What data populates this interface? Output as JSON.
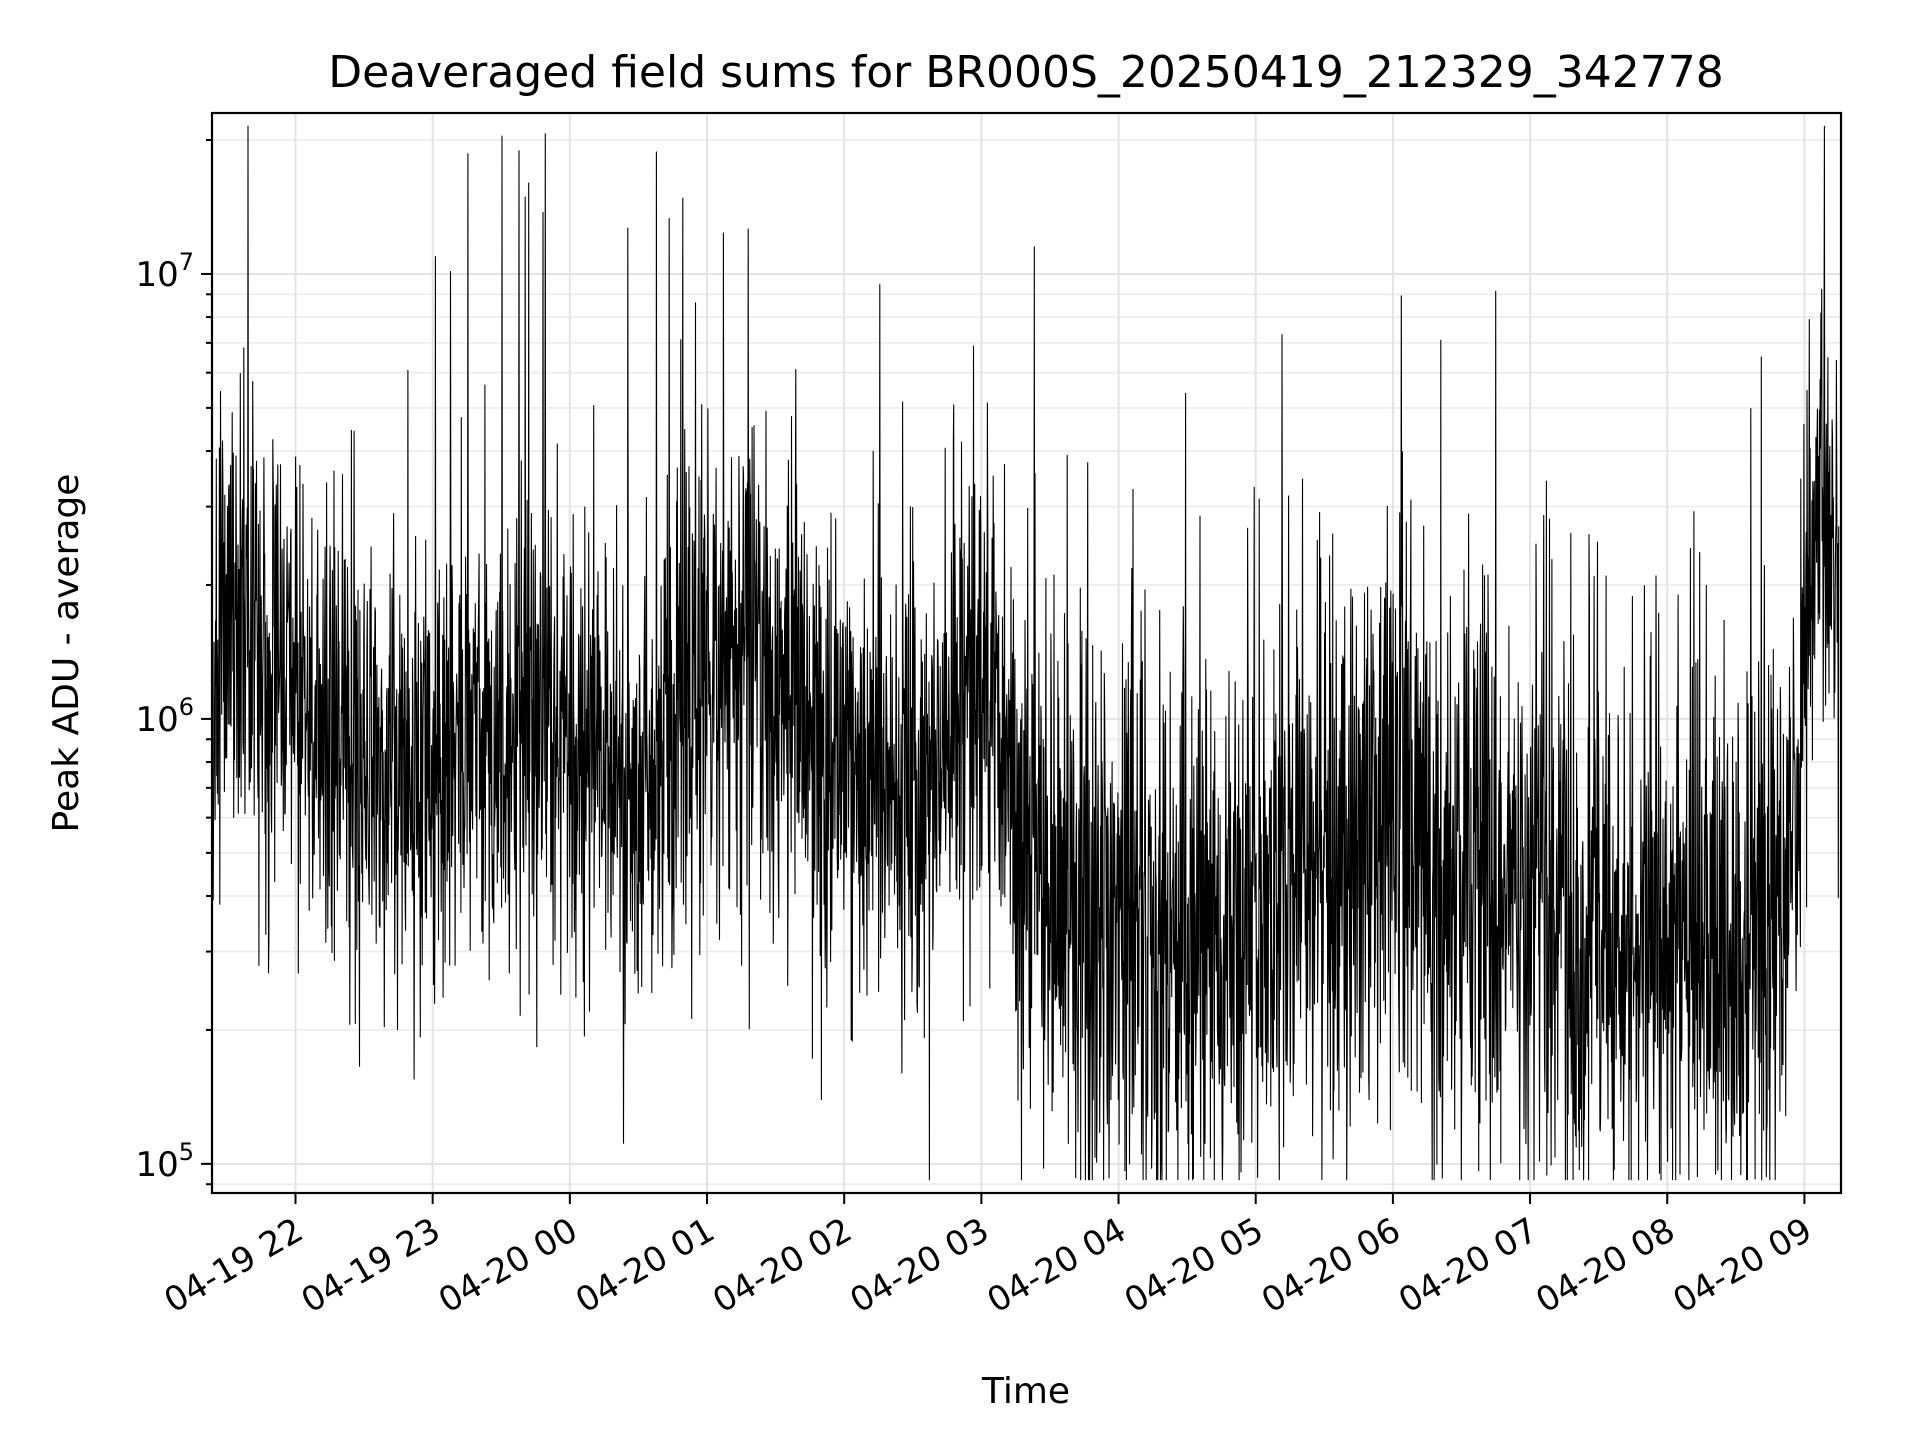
{
  "chart_data": {
    "type": "line",
    "title": "Deaveraged field sums for BR000S_20250419_212329_342778",
    "xlabel": "Time",
    "ylabel": "Peak ADU - average",
    "yscale": "log",
    "ylim": [
      86000,
      23000000
    ],
    "xlim": [
      "2025-04-19T21:23:29",
      "2025-04-20T09:16:00"
    ],
    "grid": true,
    "line_color": "#000000",
    "x_ticks": [
      {
        "label": "04-19 22",
        "time": "2025-04-19T22:00:00"
      },
      {
        "label": "04-19 23",
        "time": "2025-04-19T23:00:00"
      },
      {
        "label": "04-20 00",
        "time": "2025-04-20T00:00:00"
      },
      {
        "label": "04-20 01",
        "time": "2025-04-20T01:00:00"
      },
      {
        "label": "04-20 02",
        "time": "2025-04-20T02:00:00"
      },
      {
        "label": "04-20 03",
        "time": "2025-04-20T03:00:00"
      },
      {
        "label": "04-20 04",
        "time": "2025-04-20T04:00:00"
      },
      {
        "label": "04-20 05",
        "time": "2025-04-20T05:00:00"
      },
      {
        "label": "04-20 06",
        "time": "2025-04-20T06:00:00"
      },
      {
        "label": "04-20 07",
        "time": "2025-04-20T07:00:00"
      },
      {
        "label": "04-20 08",
        "time": "2025-04-20T08:00:00"
      },
      {
        "label": "04-20 09",
        "time": "2025-04-20T09:00:00"
      }
    ],
    "y_ticks": [
      {
        "base": "10",
        "exp": "5",
        "value": 100000
      },
      {
        "base": "10",
        "exp": "6",
        "value": 1000000
      },
      {
        "base": "10",
        "exp": "7",
        "value": 10000000
      }
    ],
    "series": [
      {
        "x": [
          "2025-04-19T21:24:00",
          "2025-04-19T21:30:00",
          "2025-04-19T21:40:00",
          "2025-04-19T21:50:00",
          "2025-04-19T22:00:00",
          "2025-04-19T22:15:00",
          "2025-04-19T22:30:00",
          "2025-04-19T22:45:00",
          "2025-04-19T23:00:00",
          "2025-04-19T23:15:00",
          "2025-04-19T23:30:00",
          "2025-04-19T23:45:00",
          "2025-04-20T00:00:00",
          "2025-04-20T00:15:00",
          "2025-04-20T00:30:00",
          "2025-04-20T00:45:00",
          "2025-04-20T01:00:00",
          "2025-04-20T01:15:00",
          "2025-04-20T01:30:00",
          "2025-04-20T01:45:00",
          "2025-04-20T02:00:00",
          "2025-04-20T02:15:00",
          "2025-04-20T02:30:00",
          "2025-04-20T02:45:00",
          "2025-04-20T03:00:00",
          "2025-04-20T03:15:00",
          "2025-04-20T03:30:00",
          "2025-04-20T03:45:00",
          "2025-04-20T04:00:00",
          "2025-04-20T04:15:00",
          "2025-04-20T04:30:00",
          "2025-04-20T04:45:00",
          "2025-04-20T05:00:00",
          "2025-04-20T05:15:00",
          "2025-04-20T05:30:00",
          "2025-04-20T05:45:00",
          "2025-04-20T06:00:00",
          "2025-04-20T06:15:00",
          "2025-04-20T06:30:00",
          "2025-04-20T06:45:00",
          "2025-04-20T07:00:00",
          "2025-04-20T07:15:00",
          "2025-04-20T07:30:00",
          "2025-04-20T07:45:00",
          "2025-04-20T08:00:00",
          "2025-04-20T08:15:00",
          "2025-04-20T08:30:00",
          "2025-04-20T08:45:00",
          "2025-04-20T08:55:00",
          "2025-04-20T09:00:00",
          "2025-04-20T09:05:00",
          "2025-04-20T09:10:00",
          "2025-04-20T09:15:00"
        ],
        "y": [
          1000000,
          1800000,
          1500000,
          1400000,
          1100000,
          900000,
          850000,
          800000,
          750000,
          780000,
          850000,
          1100000,
          800000,
          700000,
          650000,
          900000,
          1500000,
          1300000,
          1100000,
          1000000,
          850000,
          800000,
          750000,
          900000,
          1300000,
          600000,
          450000,
          400000,
          380000,
          360000,
          350000,
          340000,
          330000,
          400000,
          500000,
          550000,
          600000,
          500000,
          450000,
          400000,
          380000,
          360000,
          340000,
          330000,
          320000,
          310000,
          300000,
          330000,
          500000,
          1200000,
          2800000,
          3500000,
          1500000
        ],
        "spread_decades": [
          0.28,
          0.28,
          0.28,
          0.28,
          0.26,
          0.26,
          0.26,
          0.26,
          0.26,
          0.26,
          0.26,
          0.26,
          0.26,
          0.28,
          0.28,
          0.28,
          0.28,
          0.28,
          0.28,
          0.28,
          0.28,
          0.28,
          0.28,
          0.28,
          0.28,
          0.32,
          0.32,
          0.32,
          0.32,
          0.32,
          0.32,
          0.32,
          0.32,
          0.34,
          0.34,
          0.34,
          0.34,
          0.34,
          0.34,
          0.34,
          0.32,
          0.32,
          0.32,
          0.32,
          0.32,
          0.32,
          0.32,
          0.32,
          0.3,
          0.28,
          0.28,
          0.28,
          0.28
        ]
      }
    ]
  }
}
